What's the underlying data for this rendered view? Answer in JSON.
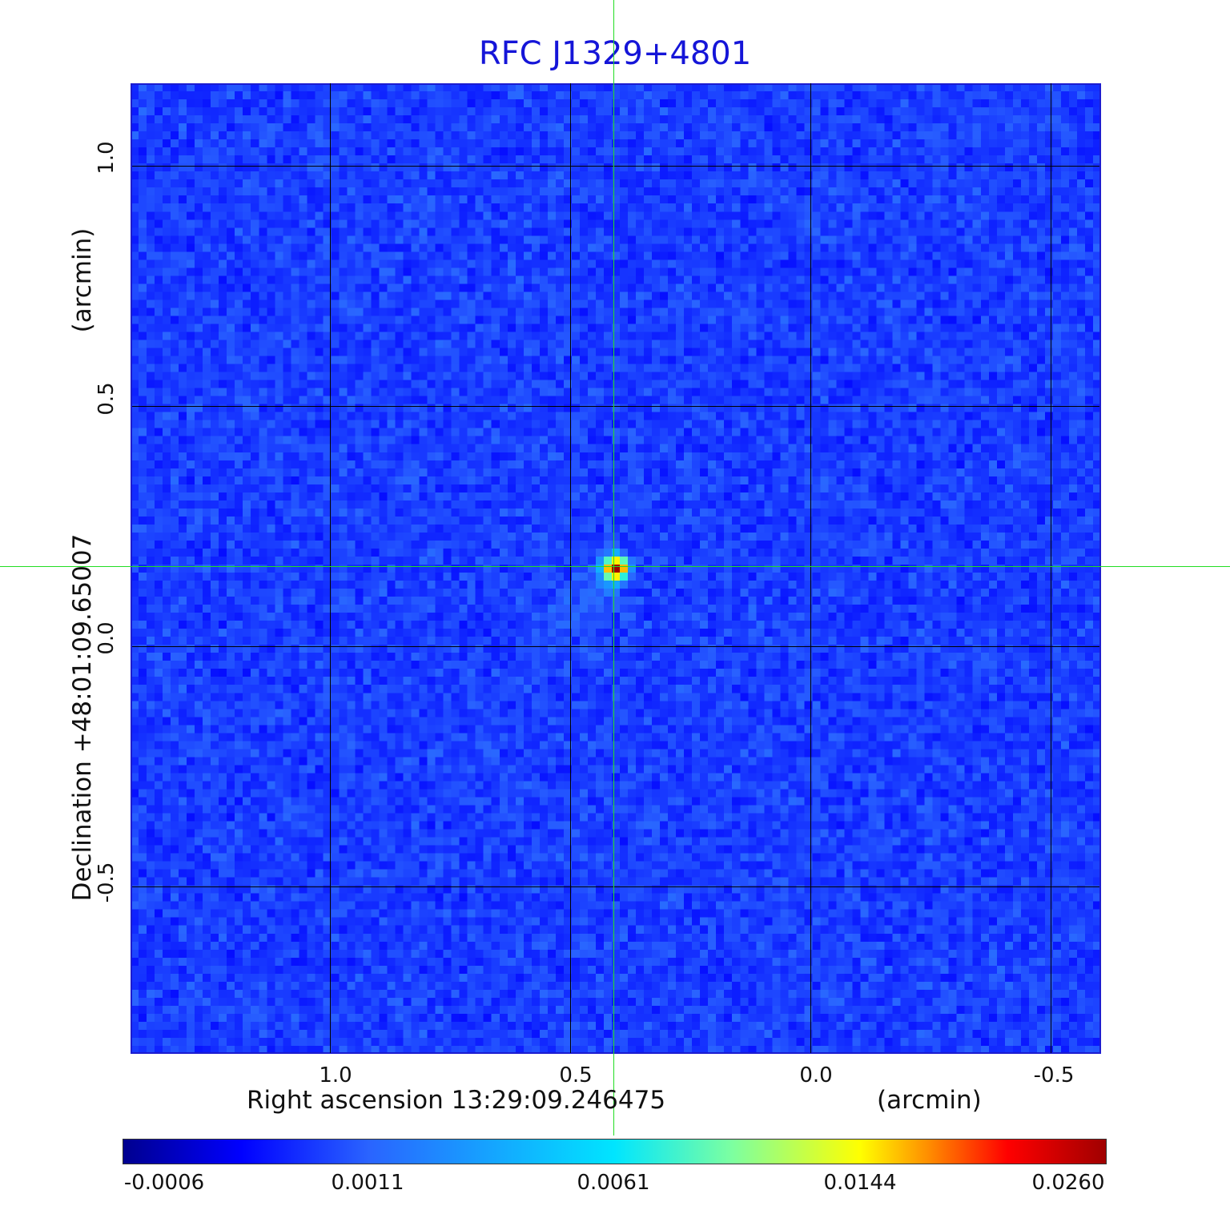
{
  "title": "RFC J1329+4801",
  "x_axis": {
    "label": "Right ascension  13:29:09.246475",
    "unit": "(arcmin)",
    "ticks": [
      "1.0",
      "0.5",
      "0.0",
      "-0.5"
    ]
  },
  "y_axis": {
    "label": "Declination  +48:01:09.65007",
    "unit": "(arcmin)",
    "ticks": [
      "1.0",
      "0.5",
      "0.0",
      "-0.5"
    ]
  },
  "colorbar": {
    "ticks": [
      "-0.0006",
      "0.0011",
      "0.0061",
      "0.0144",
      "0.0260"
    ],
    "colormap": "jet"
  },
  "colors": {
    "title": "#1515d8",
    "frame": "#1c1cd0",
    "crosshair": "#22dd22",
    "background_noise": "#1e50ee"
  }
}
